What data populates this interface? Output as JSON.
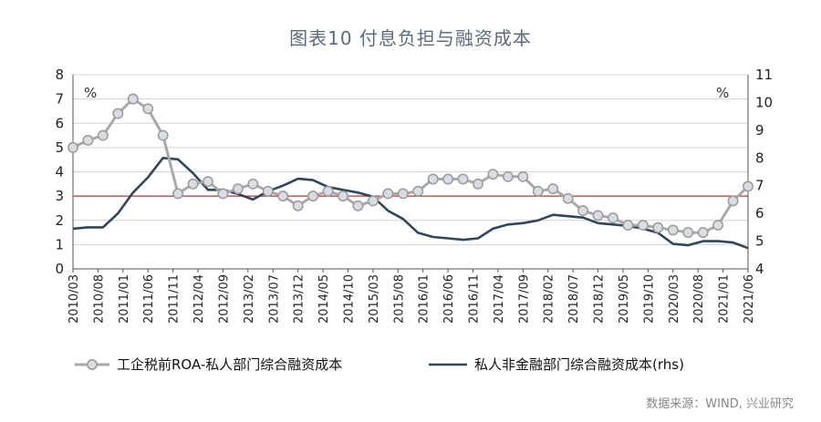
{
  "title": "图表10  付息负担与融资成本",
  "source": "数据来源：WIND, 兴业研究",
  "chart_data": {
    "type": "line",
    "left_axis": {
      "unit": "%",
      "ylim": [
        0,
        8
      ],
      "ticks": [
        0,
        1,
        2,
        3,
        4,
        5,
        6,
        7,
        8
      ]
    },
    "right_axis": {
      "unit": "%",
      "ylim": [
        4,
        11
      ],
      "ticks": [
        4,
        5,
        6,
        7,
        8,
        9,
        10,
        11
      ]
    },
    "x_tick_labels": [
      "2010/03",
      "2010/08",
      "2011/01",
      "2011/06",
      "2011/11",
      "2012/04",
      "2012/09",
      "2013/02",
      "2013/07",
      "2013/12",
      "2014/05",
      "2014/10",
      "2015/03",
      "2015/08",
      "2016/01",
      "2016/06",
      "2016/11",
      "2017/04",
      "2017/09",
      "2018/02",
      "2018/07",
      "2018/12",
      "2019/05",
      "2019/10",
      "2020/03",
      "2020/08",
      "2021/01",
      "2021/06"
    ],
    "reference_line": {
      "axis": "left",
      "value": 3.0,
      "color": "#b03a3a"
    },
    "series": [
      {
        "name": "工企税前ROA-私人部门综合融资成本",
        "axis": "left",
        "color": "#a9a9a9",
        "marker": "circle",
        "x": [
          "2010/03",
          "2010/06",
          "2010/09",
          "2010/12",
          "2011/03",
          "2011/06",
          "2011/09",
          "2011/12",
          "2012/03",
          "2012/06",
          "2012/09",
          "2012/12",
          "2013/03",
          "2013/06",
          "2013/09",
          "2013/12",
          "2014/03",
          "2014/06",
          "2014/09",
          "2014/12",
          "2015/03",
          "2015/06",
          "2015/09",
          "2015/12",
          "2016/03",
          "2016/06",
          "2016/09",
          "2016/12",
          "2017/03",
          "2017/06",
          "2017/09",
          "2017/12",
          "2018/03",
          "2018/06",
          "2018/09",
          "2018/12",
          "2019/03",
          "2019/06",
          "2019/09",
          "2019/12",
          "2020/03",
          "2020/06",
          "2020/09",
          "2020/12",
          "2021/03",
          "2021/06"
        ],
        "values": [
          5.0,
          5.3,
          5.5,
          6.4,
          7.0,
          6.6,
          5.5,
          3.1,
          3.5,
          3.6,
          3.1,
          3.3,
          3.5,
          3.2,
          3.0,
          2.6,
          3.0,
          3.2,
          3.0,
          2.6,
          2.8,
          3.1,
          3.1,
          3.2,
          3.7,
          3.7,
          3.7,
          3.5,
          3.9,
          3.8,
          3.8,
          3.2,
          3.3,
          2.9,
          2.4,
          2.2,
          2.1,
          1.8,
          1.8,
          1.7,
          1.6,
          1.5,
          1.5,
          1.8,
          2.8,
          3.4
        ]
      },
      {
        "name": "私人非金融部门综合融资成本(rhs)",
        "axis": "right",
        "color": "#2e475b",
        "marker": "none",
        "x": [
          "2010/03",
          "2010/06",
          "2010/09",
          "2010/12",
          "2011/03",
          "2011/06",
          "2011/09",
          "2011/12",
          "2012/03",
          "2012/06",
          "2012/09",
          "2012/12",
          "2013/03",
          "2013/06",
          "2013/09",
          "2013/12",
          "2014/03",
          "2014/06",
          "2014/09",
          "2014/12",
          "2015/03",
          "2015/06",
          "2015/09",
          "2015/12",
          "2016/03",
          "2016/06",
          "2016/09",
          "2016/12",
          "2017/03",
          "2017/06",
          "2017/09",
          "2017/12",
          "2018/03",
          "2018/06",
          "2018/09",
          "2018/12",
          "2019/03",
          "2019/06",
          "2019/09",
          "2019/12",
          "2020/03",
          "2020/06",
          "2020/09",
          "2020/12",
          "2021/03",
          "2021/06"
        ],
        "values": [
          5.45,
          5.5,
          5.5,
          6.0,
          6.75,
          7.3,
          8.0,
          7.95,
          7.45,
          6.85,
          6.85,
          6.7,
          6.5,
          6.8,
          7.0,
          7.25,
          7.2,
          6.95,
          6.85,
          6.75,
          6.6,
          6.1,
          5.8,
          5.3,
          5.15,
          5.1,
          5.05,
          5.1,
          5.45,
          5.6,
          5.65,
          5.75,
          5.95,
          5.9,
          5.85,
          5.65,
          5.6,
          5.55,
          5.45,
          5.3,
          4.9,
          4.85,
          5.0,
          5.0,
          4.95,
          4.75
        ]
      }
    ]
  }
}
